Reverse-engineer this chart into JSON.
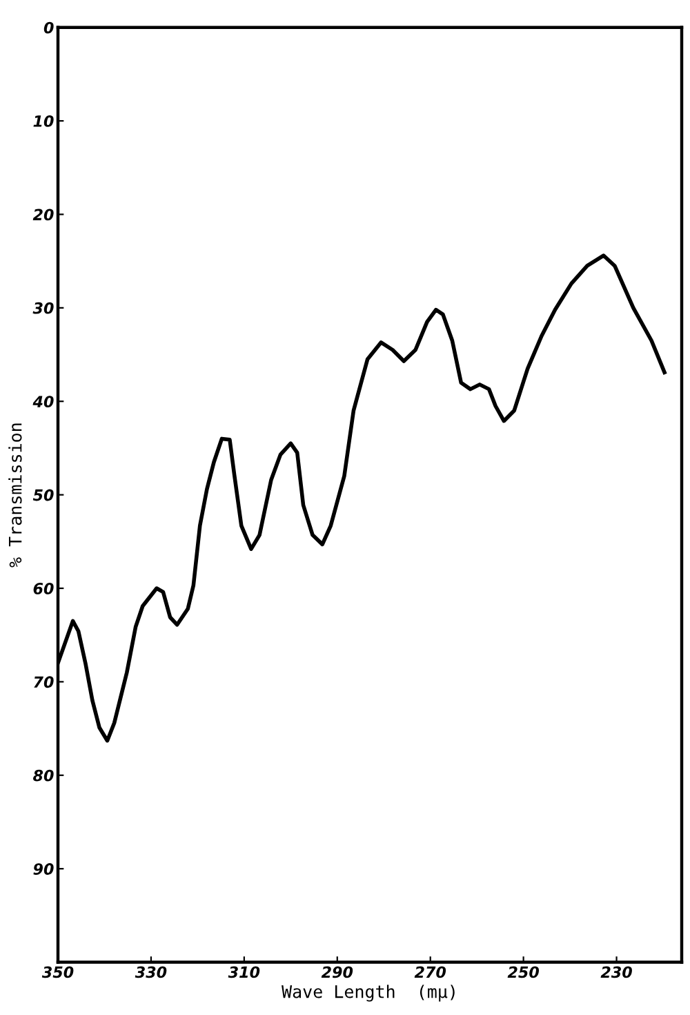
{
  "chart_data": {
    "type": "line",
    "xlabel": "Wave Length  (mμ)",
    "ylabel": "% Transmission",
    "x": [
      350,
      346.8,
      345.6,
      344.1,
      342.6,
      341.1,
      339.4,
      337.9,
      336.7,
      335.2,
      333.3,
      331.8,
      328.8,
      327.4,
      325.9,
      324.4,
      322.1,
      320.9,
      319.5,
      318.0,
      316.5,
      314.8,
      313.1,
      312.1,
      310.6,
      308.5,
      306.7,
      304.2,
      302.2,
      300.0,
      298.6,
      297.3,
      295.3,
      293.2,
      291.4,
      288.5,
      286.5,
      283.5,
      280.6,
      278.1,
      275.7,
      273.2,
      270.7,
      268.8,
      267.3,
      265.3,
      263.4,
      261.4,
      259.4,
      257.4,
      256.0,
      254.2,
      252.0,
      249.1,
      246.1,
      243.2,
      239.7,
      236.3,
      232.8,
      230.4,
      226.4,
      222.5,
      219.7
    ],
    "series": [
      {
        "color": "#000000",
        "values": [
          68.0,
          63.5,
          64.6,
          68.0,
          72.0,
          74.9,
          76.3,
          74.4,
          72.0,
          69.0,
          64.1,
          61.9,
          60.0,
          60.4,
          63.1,
          63.9,
          62.2,
          59.7,
          53.3,
          49.4,
          46.5,
          44.0,
          44.1,
          47.9,
          53.3,
          55.8,
          54.3,
          48.4,
          45.7,
          44.5,
          45.5,
          51.1,
          54.3,
          55.3,
          53.3,
          48.0,
          41.0,
          35.5,
          33.7,
          34.5,
          35.7,
          34.5,
          31.5,
          30.2,
          30.7,
          33.5,
          38.0,
          38.7,
          38.2,
          38.7,
          40.5,
          42.1,
          41.0,
          36.5,
          33.0,
          30.2,
          27.4,
          25.5,
          24.4,
          25.5,
          30.0,
          33.5,
          36.9
        ]
      }
    ],
    "xlim": [
      350,
      216
    ],
    "xticks": [
      350,
      330,
      310,
      290,
      270,
      250,
      230
    ],
    "ylim": [
      100,
      0
    ],
    "yticks": [
      0,
      10,
      20,
      30,
      40,
      50,
      60,
      70,
      80,
      90
    ],
    "grid": false,
    "legend": false,
    "marker": "none",
    "line_style": "solid"
  }
}
